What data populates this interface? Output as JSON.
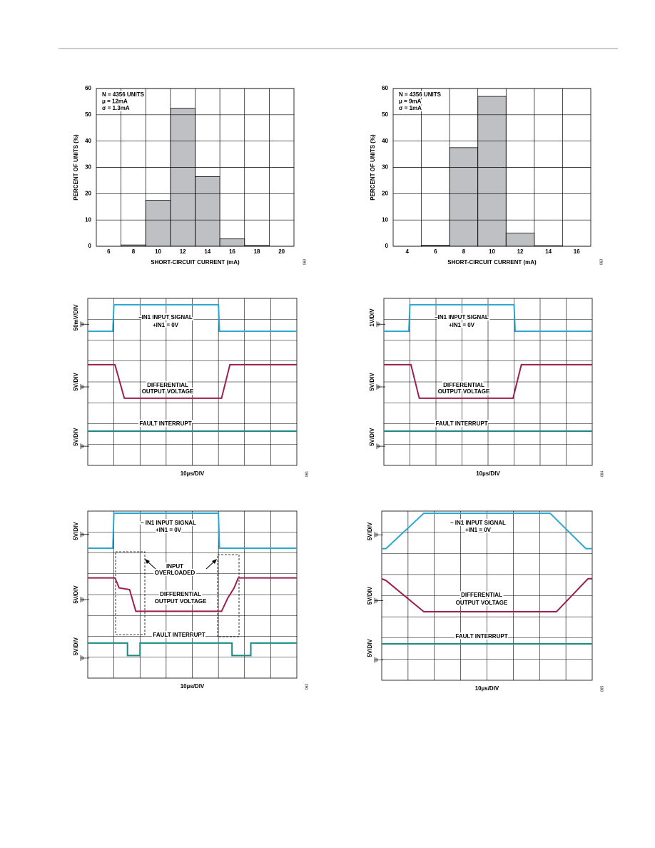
{
  "chart_data": [
    {
      "type": "bar",
      "categories": [
        "6",
        "8",
        "10",
        "12",
        "14",
        "16",
        "18",
        "20"
      ],
      "values": [
        0,
        0.5,
        17.5,
        52.5,
        26.5,
        2.8,
        0.3,
        0
      ],
      "color": "#bfc0c4",
      "ylim": [
        0,
        60
      ],
      "yticks": [
        0,
        10,
        20,
        30,
        40,
        50,
        60
      ],
      "grid": true,
      "xlabel": "SHORT-CIRCUIT CURRENT (mA)",
      "ylabel": "PERCENT OF UNITS (%)",
      "annotations": [
        "N = 4356 UNITS",
        "μ = 12mA",
        "σ = 1.3mA"
      ],
      "figure_code": "060"
    },
    {
      "type": "bar",
      "categories": [
        "4",
        "6",
        "8",
        "10",
        "12",
        "14",
        "16"
      ],
      "values": [
        0,
        0.4,
        37.5,
        57,
        5,
        0.2,
        0
      ],
      "color": "#bfc0c4",
      "ylim": [
        0,
        60
      ],
      "yticks": [
        0,
        10,
        20,
        30,
        40,
        50,
        60
      ],
      "grid": true,
      "xlabel": "SHORT-CIRCUIT CURRENT (mA)",
      "ylabel": "PERCENT OF UNITS (%)",
      "annotations": [
        "N = 4356 UNITS",
        "μ = 9mA",
        "σ = 1mA"
      ],
      "figure_code": "063"
    }
  ],
  "scopes": [
    {
      "channel_scales": [
        "50mV/DIV",
        "5V/DIV",
        "5V/DIV"
      ],
      "annotations": [
        "–IN1 INPUT SIGNAL",
        "+IN1 = 0V",
        "DIFFERENTIAL",
        "OUTPUT VOLTAGE",
        "FAULT INTERRUPT"
      ],
      "time_scale": "10µs/DIV",
      "figure_code": "061"
    },
    {
      "channel_scales": [
        "1V/DIV",
        "5V/DIV",
        "5V/DIV"
      ],
      "annotations": [
        "–IN1 INPUT SIGNAL",
        "+IN1 = 0V",
        "DIFFERENTIAL",
        "OUTPUT VOLTAGE",
        "FAULT INTERRUPT"
      ],
      "time_scale": "10µs/DIV",
      "figure_code": "064"
    },
    {
      "channel_scales": [
        "5V/DIV",
        "5V/DIV",
        "5V/DIV"
      ],
      "annotations": [
        "– IN1 INPUT SIGNAL",
        "+IN1 = 0V",
        "DIFFERENTIAL",
        "OUTPUT VOLTAGE",
        "FAULT INTERRUPT",
        "INPUT",
        "OVERLOADED"
      ],
      "time_scale": "10µs/DIV",
      "figure_code": "062"
    },
    {
      "channel_scales": [
        "5V/DIV",
        "5V/DIV",
        "5V/DIV"
      ],
      "annotations": [
        "– IN1 INPUT SIGNAL",
        "+IN1 = 0V",
        "DIFFERENTIAL",
        "OUTPUT VOLTAGE",
        "FAULT INTERRUPT"
      ],
      "time_scale": "10µs/DIV",
      "figure_code": "065"
    }
  ]
}
